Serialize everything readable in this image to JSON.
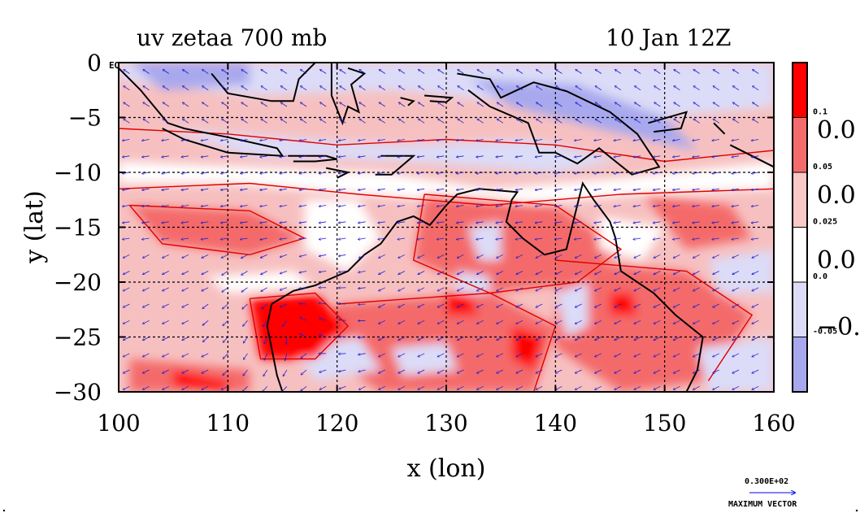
{
  "chart_data": {
    "type": "heatmap",
    "title_left": "uv zetaa 700 mb",
    "title_right": "10 Jan 12Z",
    "xlabel": "x (lon)",
    "ylabel": "y (lat)",
    "xlim": [
      100,
      160
    ],
    "ylim": [
      -30,
      0
    ],
    "x_ticks": [
      "100",
      "110",
      "120",
      "130",
      "140",
      "150",
      "160"
    ],
    "y_ticks": [
      "0",
      "−5",
      "−10",
      "−15",
      "−20",
      "−25",
      "−30"
    ],
    "y_tick_values": [
      0,
      -5,
      -10,
      -15,
      -20,
      -25,
      -30
    ],
    "x_tick_values": [
      100,
      110,
      120,
      130,
      140,
      150,
      160
    ],
    "grid": true,
    "eq_label": "EQ",
    "colorbar": {
      "levels": [
        {
          "label": "0.1",
          "color": "#ff0000"
        },
        {
          "label": "0.05",
          "color": "#f46b6b"
        },
        {
          "label": "0.025",
          "color": "#fbc8c8"
        },
        {
          "label": "0.0",
          "color": "#ffffff"
        },
        {
          "label": "-0.05",
          "color": "#dcdcf8"
        },
        {
          "label": "",
          "color": "#a8a8ee"
        }
      ],
      "big_labels": [
        "0.0",
        "0.0",
        "0.0",
        "−0."
      ]
    },
    "vector_key": {
      "value": "0.300E+02",
      "label": "MAXIMUM VECTOR",
      "color": "#0000ff"
    },
    "colors": {
      "vectors": "#2020d0",
      "coast": "#000000",
      "contour": "#e00000",
      "grid": "#000000"
    }
  }
}
